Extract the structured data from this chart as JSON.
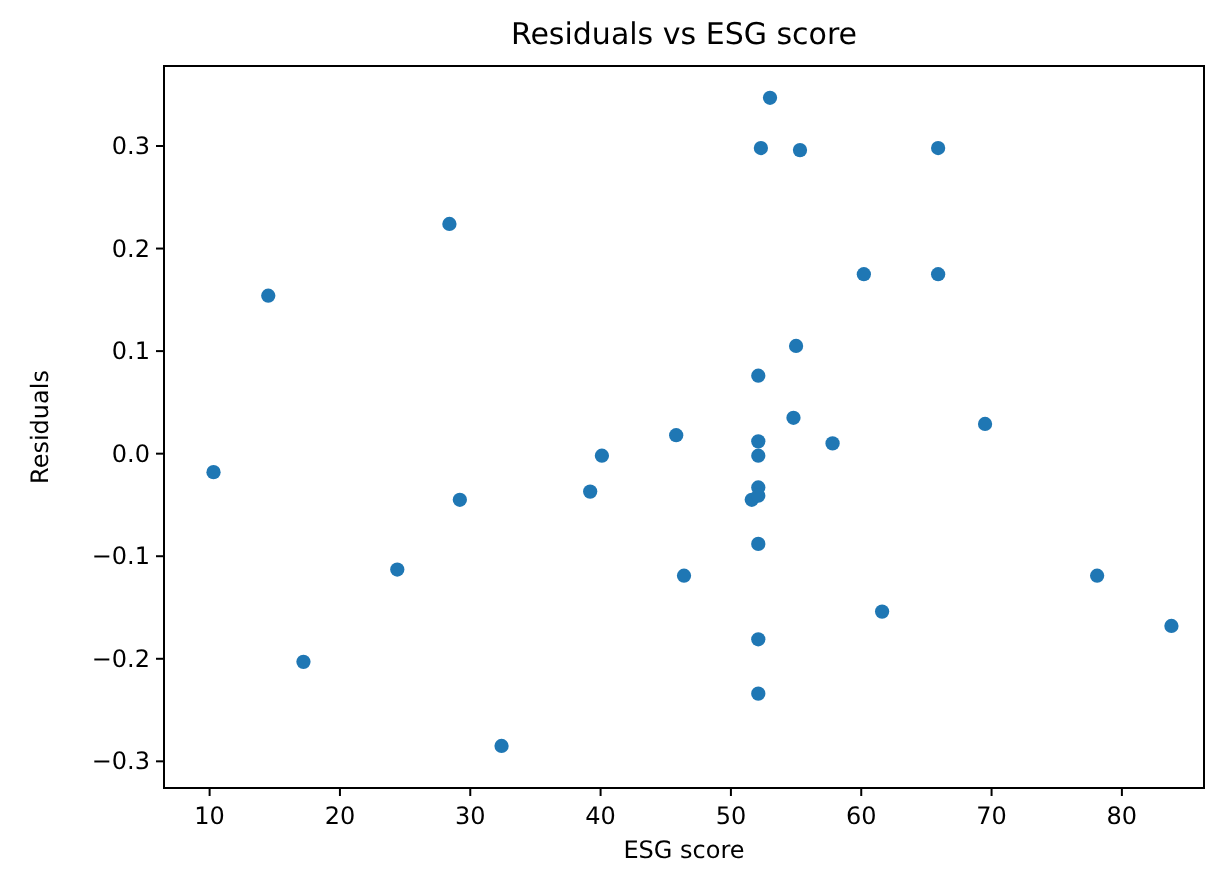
{
  "chart_data": {
    "type": "scatter",
    "title": "Residuals vs ESG score",
    "xlabel": "ESG score",
    "ylabel": "Residuals",
    "xlim": [
      6.5,
      86.3
    ],
    "xticks": [
      10,
      20,
      30,
      40,
      50,
      60,
      70,
      80
    ],
    "ylim": [
      -0.326,
      0.378
    ],
    "yticks": [
      -0.3,
      -0.2,
      -0.1,
      {
        "value": 0,
        "label": "0.0"
      },
      0.1,
      0.2,
      0.3
    ],
    "marker": "circle",
    "grid": false,
    "series": [
      {
        "color": "#1f77b4",
        "x": [
          10.3,
          14.5,
          17.2,
          24.4,
          28.4,
          29.2,
          32.4,
          39.2,
          40.1,
          45.8,
          46.4,
          51.6,
          52.1,
          52.1,
          52.1,
          52.1,
          52.1,
          52.1,
          52.1,
          52.1,
          52.3,
          53.0,
          54.8,
          55.0,
          55.3,
          57.8,
          60.2,
          61.6,
          65.9,
          65.9,
          69.5,
          78.1,
          83.8
        ],
        "values": [
          -0.018,
          0.154,
          -0.203,
          -0.113,
          0.224,
          -0.045,
          -0.285,
          -0.037,
          -0.002,
          0.018,
          -0.119,
          -0.045,
          0.076,
          0.012,
          -0.002,
          -0.033,
          -0.041,
          -0.088,
          -0.181,
          -0.234,
          0.298,
          0.347,
          0.035,
          0.105,
          0.296,
          0.01,
          0.175,
          -0.154,
          0.175,
          0.298,
          0.029,
          -0.119,
          -0.168
        ]
      }
    ]
  }
}
